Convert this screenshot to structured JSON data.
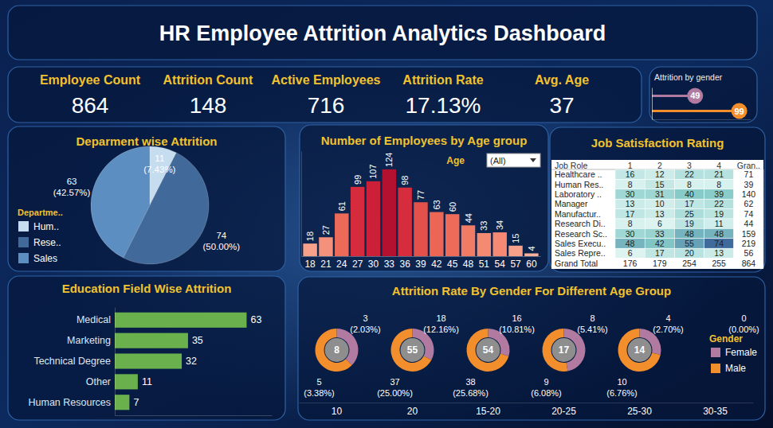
{
  "title": "HR Employee Attrition Analytics Dashboard",
  "kpis": [
    {
      "label": "Employee Count",
      "value": 864
    },
    {
      "label": "Attrition Count",
      "value": 148
    },
    {
      "label": "Active Employees",
      "value": 716
    },
    {
      "label": "Attrition Rate",
      "value": 17.13,
      "value_label": "17.13%"
    },
    {
      "label": "Avg. Age",
      "value": 37
    }
  ],
  "chart_data": [
    {
      "type": "bar",
      "title": "Attrition by gender",
      "orientation": "horizontal",
      "categories": [
        null,
        null
      ],
      "values": [
        49,
        99
      ],
      "colors": [
        "#b07aa1",
        "#f28e2b"
      ],
      "xlim": [
        0,
        112
      ],
      "xticks": [],
      "tick_labels": false,
      "data_labels": true,
      "marker": "circle"
    },
    {
      "type": "pie",
      "title": "Deparment wise Attrition",
      "categories": [
        "Hum..",
        "Rese..",
        "Sales"
      ],
      "values": [
        11,
        74,
        63
      ],
      "value_labels": [
        "11\n(7.43%)",
        "74\n(50.00%)",
        "63\n(42.57%)"
      ],
      "colors": [
        "#c6dcef",
        "#41699a",
        "#5d8ec2"
      ],
      "legend": "left",
      "legend_title": "Departme..",
      "data_labels": true
    },
    {
      "type": "bar",
      "title": "Number of Employees by Age group",
      "categories": [
        "18",
        "21",
        "24",
        "27",
        "30",
        "33",
        "36",
        "39",
        "42",
        "45",
        "48",
        "51",
        "54",
        "57",
        "60"
      ],
      "values": [
        18,
        27,
        61,
        99,
        107,
        124,
        98,
        77,
        63,
        60,
        44,
        33,
        34,
        15,
        4
      ],
      "colors": [
        "#f7a08a",
        "#f4917a",
        "#ee6a58",
        "#d52b3d",
        "#cc2038",
        "#b3112f",
        "#d52c3e",
        "#e4514b",
        "#ec6655",
        "#ed6b58",
        "#f27b66",
        "#f58a73",
        "#f58973",
        "#f7a08a",
        "#f9b19b"
      ],
      "ylim": [
        0,
        150
      ],
      "yticks": [],
      "tick_labels": "x",
      "data_labels": true,
      "filter_label": "Age",
      "filter_value": "(All)"
    },
    {
      "type": "table",
      "title": "Job Satisfaction Rating",
      "columns": [
        "Job Role",
        "1",
        "2",
        "3",
        "4",
        "Gran.."
      ],
      "rows": [
        {
          "label": "Healthcare ..",
          "values": [
            16,
            12,
            22,
            21,
            71
          ]
        },
        {
          "label": "Human Res..",
          "values": [
            8,
            15,
            8,
            8,
            39
          ]
        },
        {
          "label": "Laboratory ..",
          "values": [
            30,
            31,
            40,
            39,
            140
          ]
        },
        {
          "label": "Manager",
          "values": [
            13,
            10,
            17,
            22,
            62
          ]
        },
        {
          "label": "Manufactur..",
          "values": [
            17,
            13,
            25,
            19,
            74
          ]
        },
        {
          "label": "Research Di..",
          "values": [
            8,
            6,
            19,
            11,
            44
          ]
        },
        {
          "label": "Research Sc..",
          "values": [
            30,
            33,
            48,
            48,
            159
          ]
        },
        {
          "label": "Sales Execu..",
          "values": [
            48,
            42,
            55,
            74,
            219
          ]
        },
        {
          "label": "Sales Repre..",
          "values": [
            6,
            17,
            20,
            13,
            56
          ]
        },
        {
          "label": "Grand Total",
          "values": [
            176,
            179,
            254,
            255,
            864
          ]
        }
      ]
    },
    {
      "type": "bar",
      "title": "Education Field Wise Attrition",
      "orientation": "horizontal",
      "categories": [
        "Medical",
        "Marketing",
        "Technical Degree",
        "Other",
        "Human Resources"
      ],
      "values": [
        63,
        35,
        32,
        11,
        7
      ],
      "color": "#6ab04c",
      "xlim": [
        0,
        75
      ],
      "xticks": [],
      "tick_labels": "y",
      "data_labels": true
    },
    {
      "type": "donut",
      "title": "Attrition Rate By Gender For Different Age Group",
      "categories": [
        "10",
        "20",
        "15-20",
        "20-25",
        "25-30",
        "30-35"
      ],
      "series": [
        {
          "name": "Female",
          "color": "#b07aa1",
          "values": [
            3,
            18,
            16,
            8,
            4,
            0
          ],
          "value_labels": [
            "3\n(2.03%)",
            "18\n(12.16%)",
            "16\n(10.81%)",
            "8\n(5.41%)",
            "4\n(2.70%)",
            "0\n(0.00%)"
          ]
        },
        {
          "name": "Male",
          "color": "#f28e2b",
          "values": [
            5,
            37,
            38,
            9,
            10,
            null
          ],
          "value_labels": [
            "5\n(3.38%)",
            "37\n(25.00%)",
            "38\n(25.68%)",
            "9\n(6.08%)",
            "10\n(6.76%)",
            null
          ]
        }
      ],
      "totals": [
        8,
        55,
        54,
        17,
        14,
        null
      ],
      "legend": "right",
      "legend_title": "Gender",
      "data_labels": true
    }
  ]
}
